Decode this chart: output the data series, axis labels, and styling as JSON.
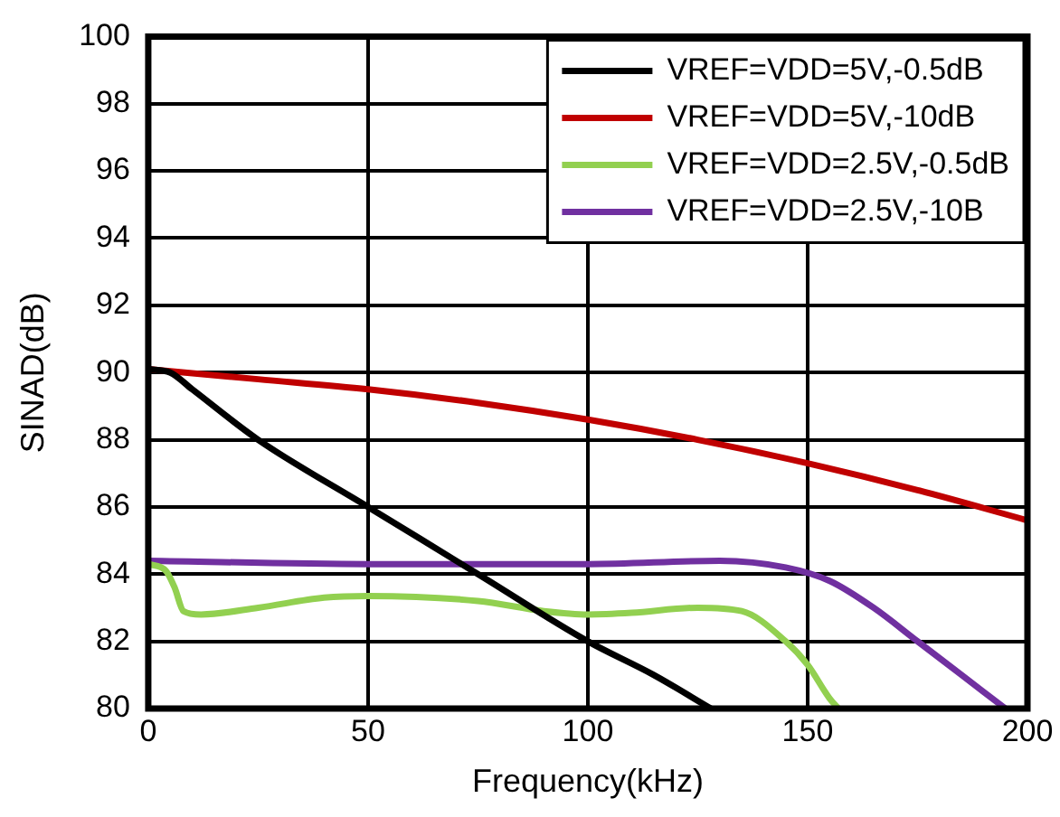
{
  "chart_data": {
    "type": "line",
    "xlabel": "Frequency(kHz)",
    "ylabel": "SINAD(dB)",
    "xlim": [
      0,
      200
    ],
    "xticks": [
      0,
      50,
      100,
      150,
      200
    ],
    "ylim": [
      80,
      100
    ],
    "yticks": [
      80,
      82,
      84,
      86,
      88,
      90,
      92,
      94,
      96,
      98,
      100
    ],
    "grid": true,
    "legend": "top right",
    "marker": "none",
    "line_style": "solid",
    "series": [
      {
        "name": "VREF=VDD=5V,-0.5dB",
        "color": "#000000",
        "x": [
          0,
          5,
          10,
          25,
          50,
          75,
          100,
          115,
          128
        ],
        "values": [
          90.1,
          90,
          89.5,
          88,
          86,
          84,
          82,
          81,
          80
        ]
      },
      {
        "name": "VREF=VDD=5V,-10dB",
        "color": "#c00000",
        "x": [
          0,
          25,
          50,
          75,
          100,
          125,
          150,
          175,
          200
        ],
        "values": [
          90.1,
          89.8,
          89.5,
          89.1,
          88.6,
          88,
          87.3,
          86.5,
          85.6
        ]
      },
      {
        "name": "VREF=VDD=2.5V,-0.5dB",
        "color": "#92d050",
        "x": [
          0,
          4,
          6,
          8,
          12,
          25,
          40,
          50,
          75,
          90,
          100,
          110,
          125,
          135,
          145,
          150,
          155,
          157
        ],
        "values": [
          84.3,
          84.1,
          83.6,
          82.9,
          82.8,
          83,
          83.3,
          83.35,
          83.2,
          82.9,
          82.8,
          82.85,
          83,
          82.9,
          82,
          81.3,
          80.3,
          80
        ]
      },
      {
        "name": "VREF=VDD=2.5V,-10B",
        "color": "#7030a0",
        "x": [
          0,
          50,
          100,
          130,
          145,
          155,
          165,
          175,
          185,
          195
        ],
        "values": [
          84.4,
          84.3,
          84.3,
          84.4,
          84.2,
          83.8,
          83,
          82,
          81,
          80
        ]
      }
    ]
  }
}
